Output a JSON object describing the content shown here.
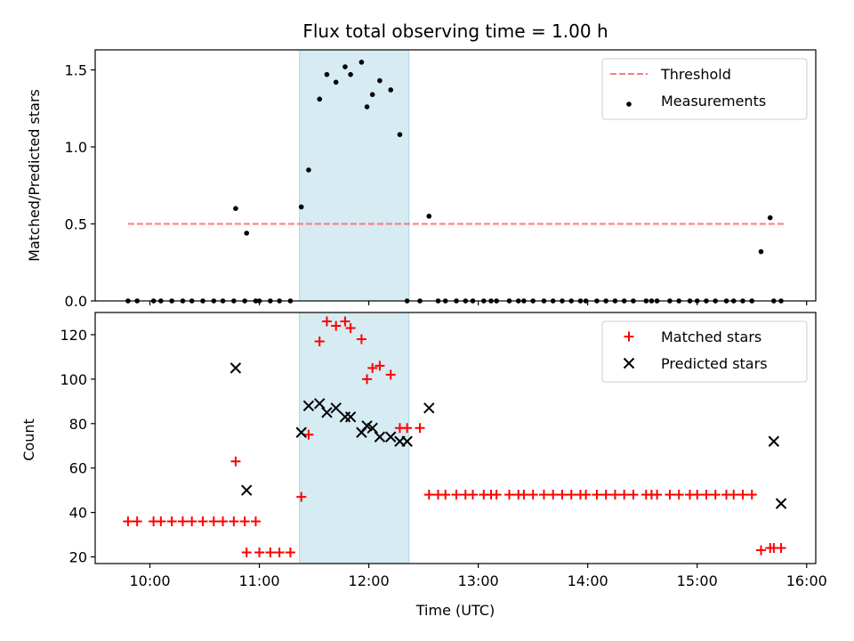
{
  "chart_data": [
    {
      "type": "scatter",
      "title": "Flux total observing time = 1.00 h",
      "xlabel": "",
      "ylabel": "Matched/Predicted stars",
      "xlim": [
        "09:30",
        "16:05"
      ],
      "ylim": [
        0,
        1.63
      ],
      "yticks": [
        "0.0",
        "0.5",
        "1.0",
        "1.5"
      ],
      "grid": false,
      "legend_position": "top-right",
      "highlight_band": {
        "x": [
          "11:22",
          "12:22"
        ],
        "color": "#add8e6"
      },
      "threshold": {
        "name": "Threshold",
        "value": 0.5,
        "x": [
          "09:48",
          "15:48"
        ],
        "color": "#ff6b6b",
        "style": "dashed"
      },
      "series": [
        {
          "name": "Measurements",
          "marker": "dot",
          "color": "#000000",
          "x": [
            "09:48",
            "09:53",
            "10:02",
            "10:06",
            "10:12",
            "10:18",
            "10:23",
            "10:29",
            "10:35",
            "10:40",
            "10:46",
            "10:52",
            "10:58",
            "10:47",
            "10:53",
            "11:00",
            "11:06",
            "11:11",
            "11:17",
            "11:23",
            "11:27",
            "11:33",
            "11:37",
            "11:42",
            "11:47",
            "11:50",
            "11:56",
            "11:59",
            "12:02",
            "12:06",
            "12:12",
            "12:17",
            "12:21",
            "12:28",
            "12:33",
            "12:38",
            "12:42",
            "12:48",
            "12:53",
            "12:57",
            "13:03",
            "13:07",
            "13:10",
            "13:17",
            "13:22",
            "13:25",
            "13:30",
            "13:36",
            "13:41",
            "13:46",
            "13:51",
            "13:56",
            "13:59",
            "14:05",
            "14:10",
            "14:15",
            "14:20",
            "14:25",
            "14:32",
            "14:35",
            "14:38",
            "14:45",
            "14:50",
            "14:56",
            "15:00",
            "15:05",
            "15:10",
            "15:16",
            "15:20",
            "15:25",
            "15:30",
            "15:35",
            "15:40",
            "15:42",
            "15:46"
          ],
          "y": [
            0,
            0,
            0,
            0,
            0,
            0,
            0,
            0,
            0,
            0,
            0,
            0,
            0,
            0.6,
            0.44,
            0,
            0,
            0,
            0,
            0.61,
            0.85,
            1.31,
            1.47,
            1.42,
            1.52,
            1.47,
            1.55,
            1.26,
            1.34,
            1.43,
            1.37,
            1.08,
            0,
            0,
            0.55,
            0,
            0,
            0,
            0,
            0,
            0,
            0,
            0,
            0,
            0,
            0,
            0,
            0,
            0,
            0,
            0,
            0,
            0,
            0,
            0,
            0,
            0,
            0,
            0,
            0,
            0,
            0,
            0,
            0,
            0,
            0,
            0,
            0,
            0,
            0,
            0,
            0.32,
            0.54,
            0,
            0
          ]
        }
      ]
    },
    {
      "type": "scatter",
      "title": "",
      "xlabel": "Time (UTC)",
      "ylabel": "Count",
      "xlim": [
        "09:30",
        "16:05"
      ],
      "xticks": [
        "10:00",
        "11:00",
        "12:00",
        "13:00",
        "14:00",
        "15:00",
        "16:00"
      ],
      "ylim": [
        17,
        130
      ],
      "yticks": [
        "20",
        "40",
        "60",
        "80",
        "100",
        "120"
      ],
      "grid": false,
      "legend_position": "top-right",
      "highlight_band": {
        "x": [
          "11:22",
          "12:22"
        ],
        "color": "#add8e6"
      },
      "series": [
        {
          "name": "Matched stars",
          "marker": "plus",
          "color": "#ff0000",
          "x": [
            "09:48",
            "09:53",
            "10:02",
            "10:06",
            "10:12",
            "10:18",
            "10:23",
            "10:29",
            "10:35",
            "10:40",
            "10:46",
            "10:52",
            "10:58",
            "10:47",
            "10:53",
            "11:00",
            "11:06",
            "11:11",
            "11:17",
            "11:23",
            "11:27",
            "11:33",
            "11:37",
            "11:42",
            "11:47",
            "11:50",
            "11:56",
            "11:59",
            "12:02",
            "12:06",
            "12:12",
            "12:17",
            "12:21",
            "12:28",
            "12:33",
            "12:38",
            "12:42",
            "12:48",
            "12:53",
            "12:57",
            "13:03",
            "13:07",
            "13:10",
            "13:17",
            "13:22",
            "13:25",
            "13:30",
            "13:36",
            "13:41",
            "13:46",
            "13:51",
            "13:56",
            "13:59",
            "14:05",
            "14:10",
            "14:15",
            "14:20",
            "14:25",
            "14:32",
            "14:35",
            "14:38",
            "14:45",
            "14:50",
            "14:56",
            "15:00",
            "15:05",
            "15:10",
            "15:16",
            "15:20",
            "15:25",
            "15:30",
            "15:35",
            "15:40",
            "15:42",
            "15:46"
          ],
          "y": [
            36,
            36,
            36,
            36,
            36,
            36,
            36,
            36,
            36,
            36,
            36,
            36,
            36,
            63,
            22,
            22,
            22,
            22,
            22,
            47,
            75,
            117,
            126,
            124,
            126,
            123,
            118,
            100,
            105,
            106,
            102,
            78,
            78,
            78,
            48,
            48,
            48,
            48,
            48,
            48,
            48,
            48,
            48,
            48,
            48,
            48,
            48,
            48,
            48,
            48,
            48,
            48,
            48,
            48,
            48,
            48,
            48,
            48,
            48,
            48,
            48,
            48,
            48,
            48,
            48,
            48,
            48,
            48,
            48,
            48,
            48,
            23,
            24,
            24,
            24
          ]
        },
        {
          "name": "Predicted stars",
          "marker": "x",
          "color": "#000000",
          "x": [
            "10:47",
            "10:53",
            "11:23",
            "11:27",
            "11:33",
            "11:37",
            "11:42",
            "11:47",
            "11:50",
            "11:56",
            "11:59",
            "12:02",
            "12:06",
            "12:12",
            "12:17",
            "12:21",
            "12:33",
            "15:42",
            "15:46"
          ],
          "y": [
            105,
            50,
            76,
            88,
            89,
            85,
            87,
            83,
            83,
            76,
            79,
            78,
            74,
            74,
            72,
            72,
            87,
            72,
            44
          ]
        }
      ]
    }
  ]
}
